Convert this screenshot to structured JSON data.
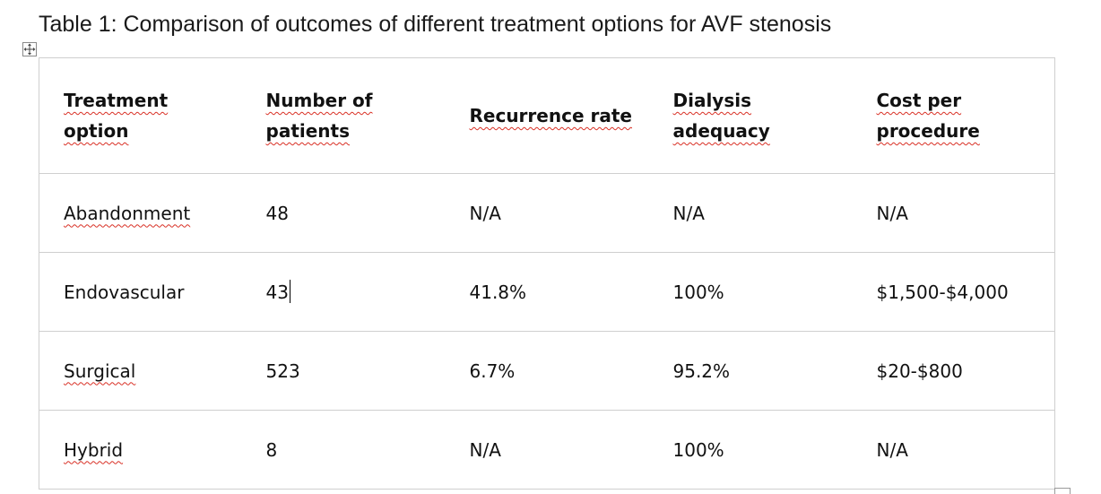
{
  "caption": "Table 1: Comparison of outcomes of different treatment options for AVF stenosis",
  "icons": {
    "move_handle": "four-arrows-move-icon",
    "resize_handle": "table-resize-handle"
  },
  "spellcheck_color": "#d93025",
  "table": {
    "headers": [
      {
        "line1": "Treatment",
        "line2": "option"
      },
      {
        "line1": "Number of",
        "line2": "patients"
      },
      {
        "line1": "Recurrence rate",
        "line2": ""
      },
      {
        "line1": "Dialysis",
        "line2": "adequacy"
      },
      {
        "line1": "Cost per",
        "line2": "procedure"
      }
    ],
    "rows": [
      {
        "treatment": "Abandonment",
        "patients": "48",
        "recurrence": "N/A",
        "adequacy": "N/A",
        "cost": "N/A"
      },
      {
        "treatment": "Endovascular",
        "patients": "43",
        "recurrence": "41.8%",
        "adequacy": "100%",
        "cost": "$1,500-$4,000"
      },
      {
        "treatment": "Surgical",
        "patients": "523",
        "recurrence": "6.7%",
        "adequacy": "95.2%",
        "cost": "$20-$800"
      },
      {
        "treatment": "Hybrid",
        "patients": "8",
        "recurrence": "N/A",
        "adequacy": "100%",
        "cost": "N/A"
      }
    ]
  }
}
